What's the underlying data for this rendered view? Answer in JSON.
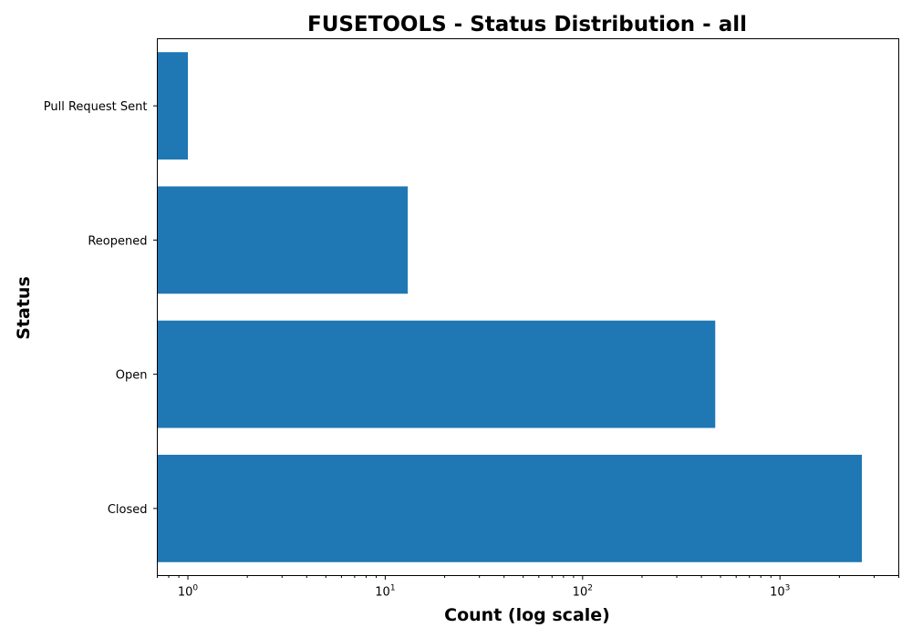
{
  "chart_data": {
    "type": "bar",
    "orientation": "horizontal",
    "title": "FUSETOOLS - Status Distribution - all",
    "xlabel": "Count (log scale)",
    "ylabel": "Status",
    "xscale": "log",
    "xlim": [
      0.7,
      4000
    ],
    "x_ticks": [
      {
        "value": 1,
        "base": "10",
        "exp": "0"
      },
      {
        "value": 10,
        "base": "10",
        "exp": "1"
      },
      {
        "value": 100,
        "base": "10",
        "exp": "2"
      },
      {
        "value": 1000,
        "base": "10",
        "exp": "3"
      }
    ],
    "categories": [
      "Closed",
      "Open",
      "Reopened",
      "Pull Request Sent"
    ],
    "values": [
      2600,
      470,
      13,
      1
    ],
    "bar_color": "#1f77b4",
    "grid": false,
    "legend": "none"
  }
}
